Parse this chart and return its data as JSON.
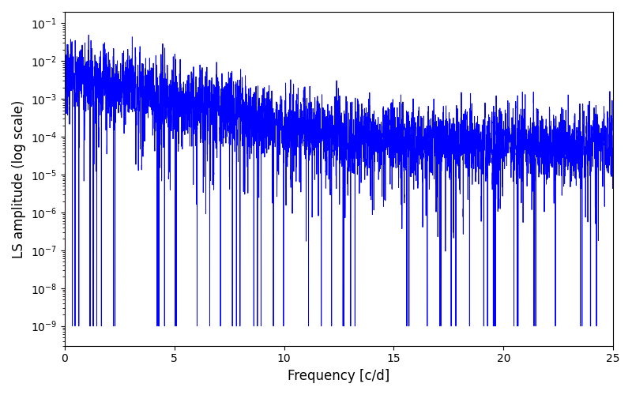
{
  "xlabel": "Frequency [c/d]",
  "ylabel": "LS amplitude (log scale)",
  "xlim": [
    0,
    25
  ],
  "ylim": [
    3e-10,
    0.2
  ],
  "line_color": "#0000ff",
  "line_width": 0.7,
  "background_color": "#ffffff",
  "figsize": [
    8.0,
    5.0
  ],
  "dpi": 100,
  "freq_max": 25.0,
  "n_points": 8000,
  "seed": 7
}
